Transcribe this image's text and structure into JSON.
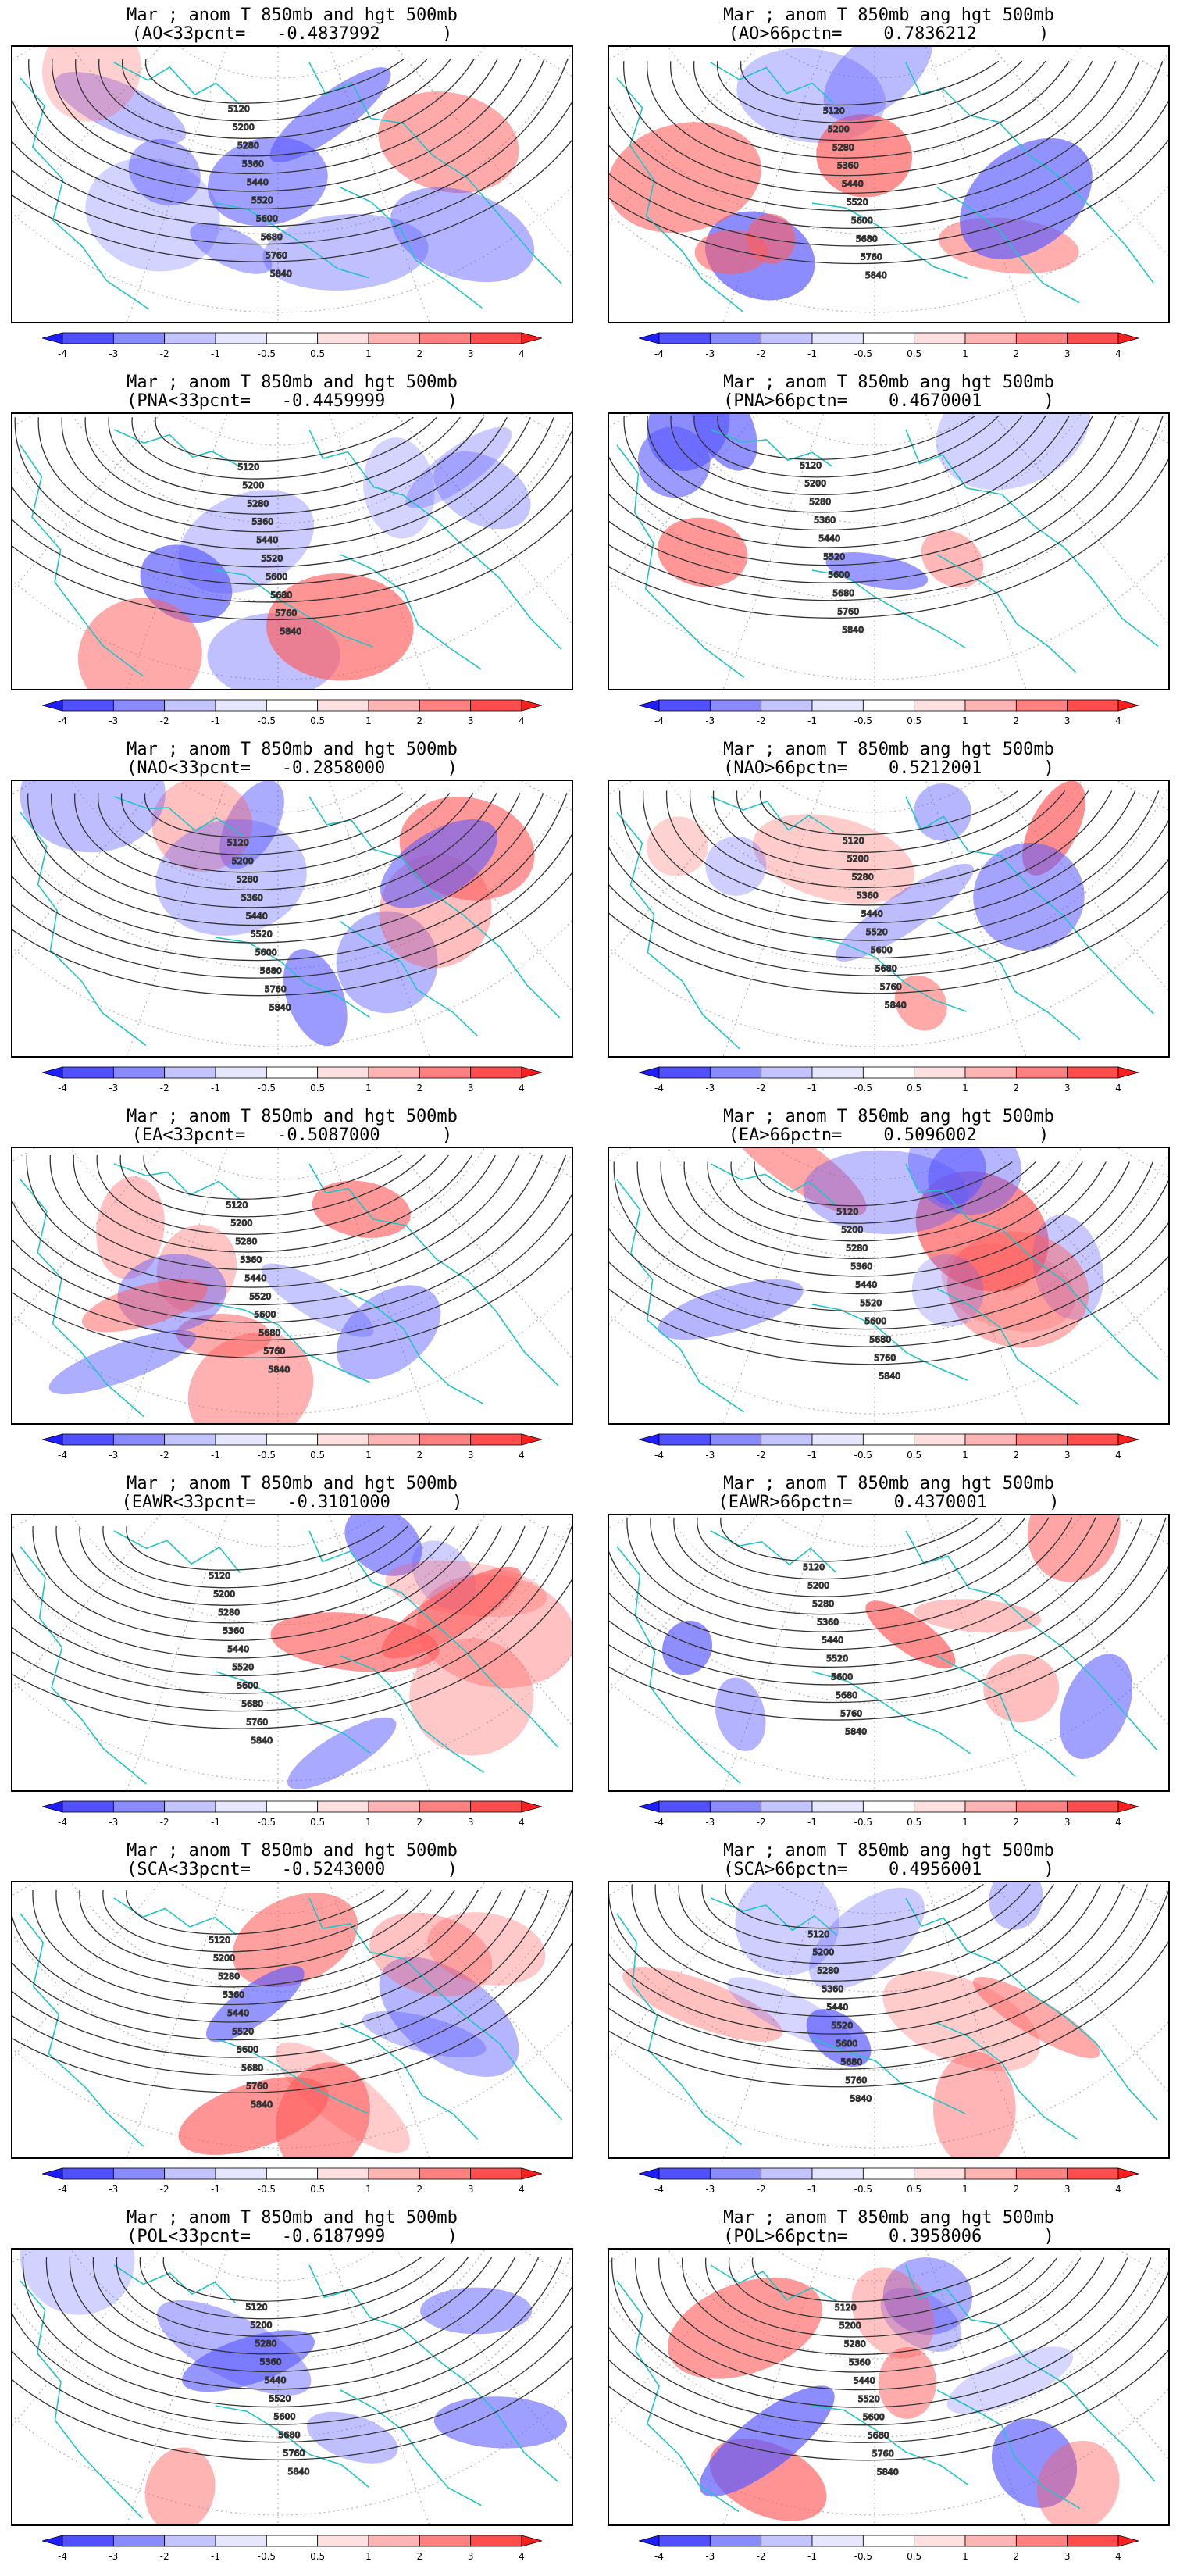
{
  "colorbar": {
    "tick_labels": [
      "-4",
      "-3",
      "-2",
      "-1",
      "-0.5",
      "0.5",
      "1",
      "2",
      "3",
      "4"
    ],
    "colors": [
      "#1e1eff",
      "#5050ff",
      "#8a8aff",
      "#c3c3ff",
      "#e6e6ff",
      "#ffffff",
      "#ffe0e0",
      "#ffb4b4",
      "#ff8080",
      "#ff4c4c",
      "#ff1e1e"
    ]
  },
  "map_colors": {
    "coastline": "#22c4c4",
    "contour": "#333333",
    "graticule": "#b4b4b4",
    "warm": "#ff5c5c",
    "cold": "#5a5aff"
  },
  "contour_labels": [
    "5120",
    "5200",
    "5280",
    "5360",
    "5440",
    "5520",
    "5600",
    "5680",
    "5760",
    "5840"
  ],
  "panels": [
    {
      "title1": "Mar ; anom T 850mb and hgt 500mb",
      "title2": "(AO<33pcnt=   -0.4837992      )",
      "seed": 11
    },
    {
      "title1": "Mar ; anom T 850mb ang hgt 500mb",
      "title2": "(AO>66pctn=    0.7836212      )",
      "seed": 12
    },
    {
      "title1": "Mar ; anom T 850mb and hgt 500mb",
      "title2": "(PNA<33pcnt=   -0.4459999      )",
      "seed": 21
    },
    {
      "title1": "Mar ; anom T 850mb ang hgt 500mb",
      "title2": "(PNA>66pctn=    0.4670001      )",
      "seed": 22
    },
    {
      "title1": "Mar ; anom T 850mb and hgt 500mb",
      "title2": "(NAO<33pcnt=   -0.2858000      )",
      "seed": 31
    },
    {
      "title1": "Mar ; anom T 850mb ang hgt 500mb",
      "title2": "(NAO>66pctn=    0.5212001      )",
      "seed": 32
    },
    {
      "title1": "Mar ; anom T 850mb and hgt 500mb",
      "title2": "(EA<33pcnt=   -0.5087000      )",
      "seed": 41
    },
    {
      "title1": "Mar ; anom T 850mb ang hgt 500mb",
      "title2": "(EA>66pctn=    0.5096002      )",
      "seed": 42
    },
    {
      "title1": "Mar ; anom T 850mb and hgt 500mb",
      "title2": "(EAWR<33pcnt=   -0.3101000      )",
      "seed": 51
    },
    {
      "title1": "Mar ; anom T 850mb ang hgt 500mb",
      "title2": "(EAWR>66pctn=    0.4370001      )",
      "seed": 52
    },
    {
      "title1": "Mar ; anom T 850mb and hgt 500mb",
      "title2": "(SCA<33pcnt=   -0.5243000      )",
      "seed": 61
    },
    {
      "title1": "Mar ; anom T 850mb ang hgt 500mb",
      "title2": "(SCA>66pctn=    0.4956001      )",
      "seed": 62
    },
    {
      "title1": "Mar ; anom T 850mb and hgt 500mb",
      "title2": "(POL<33pcnt=   -0.6187999      )",
      "seed": 71
    },
    {
      "title1": "Mar ; anom T 850mb ang hgt 500mb",
      "title2": "(POL>66pctn=    0.3958006      )",
      "seed": 72
    }
  ]
}
